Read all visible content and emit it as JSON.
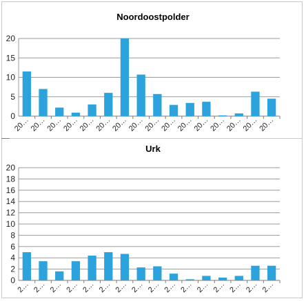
{
  "chart_data": [
    {
      "type": "bar",
      "title": "Noordoostpolder",
      "ylim": [
        0,
        20
      ],
      "yticks": [
        0,
        5,
        10,
        15,
        20
      ],
      "grid": true,
      "bar_color": "#2da3dd",
      "category_labels": [
        "20…",
        "20…",
        "20…",
        "20…",
        "20…",
        "20…",
        "20…",
        "20…",
        "20…",
        "20…",
        "20…",
        "20…",
        "20…",
        "20…",
        "20…",
        "20…"
      ],
      "values": [
        11.5,
        7.0,
        2.2,
        0.9,
        3.0,
        6.0,
        20.0,
        10.7,
        5.7,
        2.9,
        3.4,
        3.7,
        0.2,
        0.7,
        6.3,
        4.5
      ]
    },
    {
      "type": "bar",
      "title": "Urk",
      "ylim": [
        0,
        20
      ],
      "yticks": [
        0,
        2,
        4,
        6,
        8,
        10,
        12,
        14,
        16,
        18,
        20
      ],
      "grid": true,
      "bar_color": "#2da3dd",
      "category_labels": [
        "2…",
        "2…",
        "2…",
        "2…",
        "2…",
        "2…",
        "2…",
        "2…",
        "2…",
        "2…",
        "2…",
        "2…",
        "2…",
        "2…",
        "2…",
        "2…"
      ],
      "values": [
        5.0,
        3.4,
        1.6,
        3.4,
        4.4,
        5.0,
        4.7,
        2.3,
        2.5,
        1.2,
        0.2,
        0.8,
        0.5,
        0.8,
        2.6,
        2.6
      ]
    }
  ]
}
